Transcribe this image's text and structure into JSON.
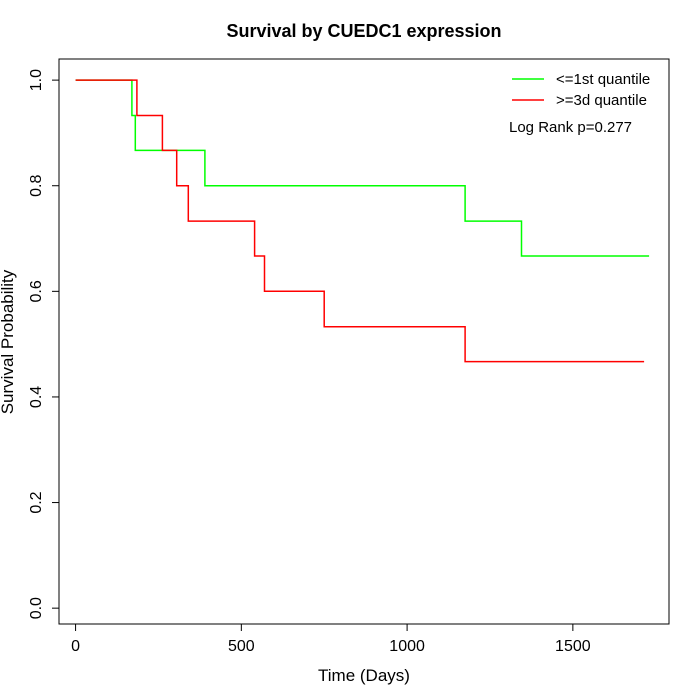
{
  "chart_data": {
    "type": "line",
    "step": true,
    "title": "Survival by CUEDC1 expression",
    "xlabel": "Time (Days)",
    "ylabel": "Survival Probability",
    "xlim": [
      -50,
      1790
    ],
    "ylim": [
      -0.03,
      1.04
    ],
    "xticks": [
      0,
      500,
      1000,
      1500
    ],
    "yticks": [
      0.0,
      0.2,
      0.4,
      0.6,
      0.8,
      1.0
    ],
    "xtick_labels": [
      "0",
      "500",
      "1000",
      "1500"
    ],
    "ytick_labels": [
      "0.0",
      "0.2",
      "0.4",
      "0.6",
      "0.8",
      "1.0"
    ],
    "grid": false,
    "legend": "top-right",
    "annotation": "Log Rank p=0.277",
    "series": [
      {
        "name": "<=1st quantile",
        "color": "#00ff00",
        "x": [
          0,
          170,
          180,
          390,
          1175,
          1345,
          1730
        ],
        "y": [
          1.0,
          0.933,
          0.867,
          0.8,
          0.733,
          0.667,
          0.667
        ]
      },
      {
        "name": ">=3d quantile",
        "color": "#ff0000",
        "x": [
          0,
          185,
          262,
          305,
          340,
          540,
          570,
          750,
          1175,
          1715
        ],
        "y": [
          1.0,
          0.933,
          0.867,
          0.8,
          0.733,
          0.667,
          0.6,
          0.533,
          0.467,
          0.467
        ]
      }
    ]
  }
}
